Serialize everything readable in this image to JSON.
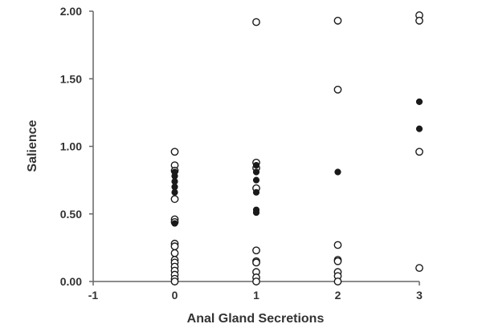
{
  "chart_data": {
    "type": "scatter",
    "title": "",
    "xlabel": "Anal Gland Secretions",
    "ylabel": "Salience",
    "xlim": [
      -1,
      3
    ],
    "ylim": [
      0,
      2
    ],
    "x_ticks": [
      "-1",
      "0",
      "1",
      "2",
      "3"
    ],
    "y_ticks": [
      "0.00",
      "0.50",
      "1.00",
      "1.50",
      "2.00"
    ],
    "grid": false,
    "legend": "none",
    "marker_styles": {
      "open": "hollow circle",
      "filled": "solid circle"
    },
    "series": [
      {
        "marker": "open",
        "points": [
          [
            0,
            0.96
          ],
          [
            0,
            0.86
          ],
          [
            0,
            0.82
          ],
          [
            0,
            0.61
          ],
          [
            0,
            0.46
          ],
          [
            0,
            0.44
          ],
          [
            0,
            0.28
          ],
          [
            0,
            0.26
          ],
          [
            0,
            0.21
          ],
          [
            0,
            0.16
          ],
          [
            0,
            0.14
          ],
          [
            0,
            0.11
          ],
          [
            0,
            0.08
          ],
          [
            0,
            0.05
          ],
          [
            0,
            0.02
          ],
          [
            0,
            0.0
          ],
          [
            1,
            1.92
          ],
          [
            1,
            0.88
          ],
          [
            1,
            0.84
          ],
          [
            1,
            0.69
          ],
          [
            1,
            0.23
          ],
          [
            1,
            0.15
          ],
          [
            1,
            0.14
          ],
          [
            1,
            0.07
          ],
          [
            1,
            0.03
          ],
          [
            1,
            0.0
          ],
          [
            2,
            1.93
          ],
          [
            2,
            1.42
          ],
          [
            2,
            0.27
          ],
          [
            2,
            0.16
          ],
          [
            2,
            0.15
          ],
          [
            2,
            0.07
          ],
          [
            2,
            0.04
          ],
          [
            2,
            0.0
          ],
          [
            3,
            1.97
          ],
          [
            3,
            1.93
          ],
          [
            3,
            0.96
          ],
          [
            3,
            0.1
          ]
        ]
      },
      {
        "marker": "filled",
        "points": [
          [
            0,
            0.81
          ],
          [
            0,
            0.78
          ],
          [
            0,
            0.74
          ],
          [
            0,
            0.7
          ],
          [
            0,
            0.66
          ],
          [
            0,
            0.43
          ],
          [
            1,
            0.86
          ],
          [
            1,
            0.81
          ],
          [
            1,
            0.75
          ],
          [
            1,
            0.66
          ],
          [
            1,
            0.53
          ],
          [
            1,
            0.51
          ],
          [
            2,
            0.81
          ],
          [
            3,
            1.33
          ],
          [
            3,
            1.13
          ]
        ]
      }
    ]
  }
}
